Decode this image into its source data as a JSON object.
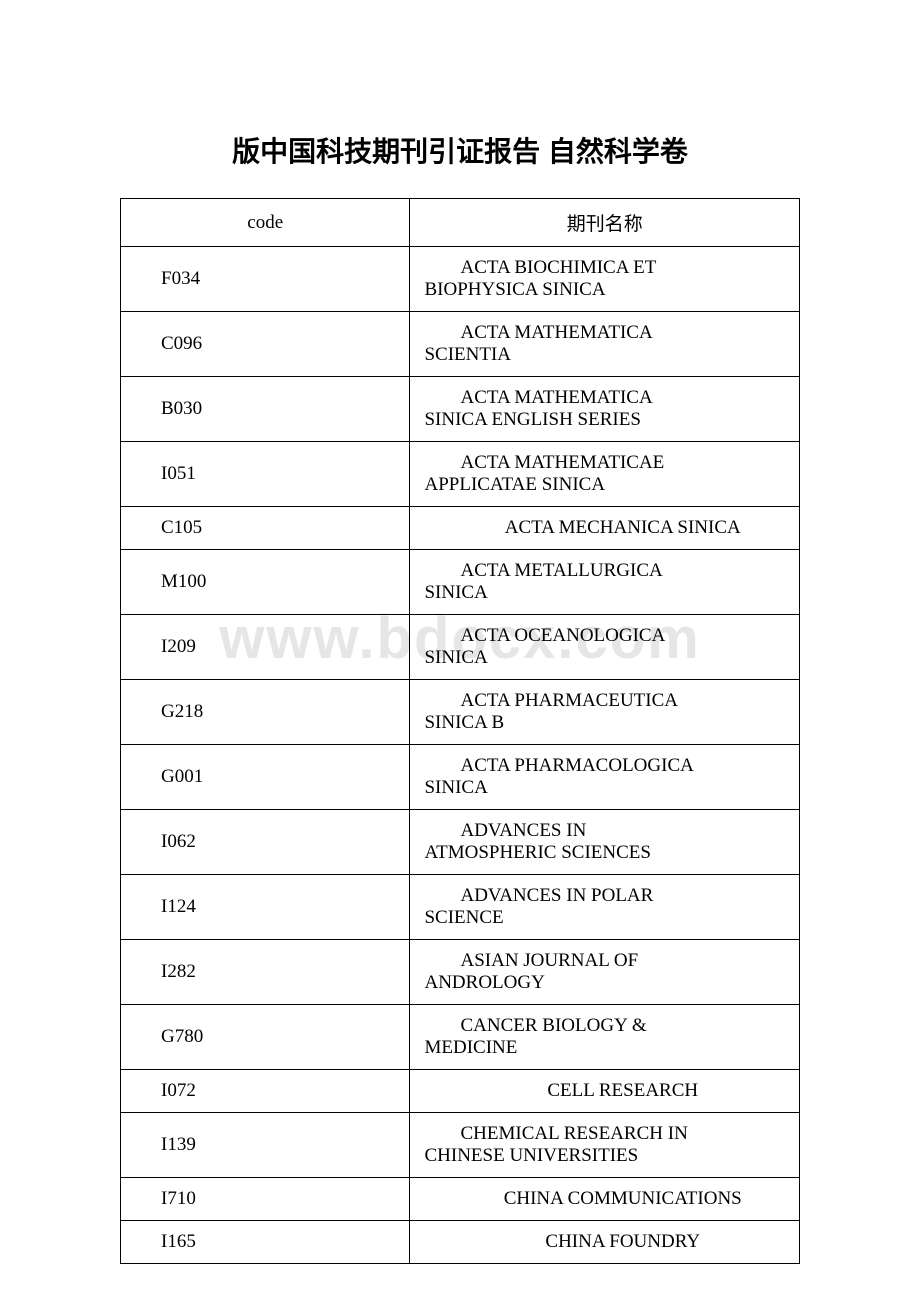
{
  "title": "版中国科技期刊引证报告 自然科学卷",
  "watermark": "www.bdocx.com",
  "headers": {
    "code": "code",
    "name": "期刊名称"
  },
  "rows": [
    {
      "code": "F034",
      "name_l1": "ACTA BIOCHIMICA ET",
      "name_l2": "BIOPHYSICA SINICA"
    },
    {
      "code": "C096",
      "name_l1": "ACTA MATHEMATICA",
      "name_l2": "SCIENTIA"
    },
    {
      "code": "B030",
      "name_l1": "ACTA MATHEMATICA",
      "name_l2": "SINICA ENGLISH SERIES"
    },
    {
      "code": "I051",
      "name_l1": "ACTA MATHEMATICAE",
      "name_l2": "APPLICATAE SINICA"
    },
    {
      "code": "C105",
      "name_l1": "ACTA MECHANICA SINICA",
      "name_l2": ""
    },
    {
      "code": "M100",
      "name_l1": "ACTA METALLURGICA",
      "name_l2": "SINICA"
    },
    {
      "code": "I209",
      "name_l1": "ACTA OCEANOLOGICA",
      "name_l2": "SINICA"
    },
    {
      "code": "G218",
      "name_l1": "ACTA PHARMACEUTICA",
      "name_l2": "SINICA B"
    },
    {
      "code": "G001",
      "name_l1": "ACTA PHARMACOLOGICA",
      "name_l2": "SINICA"
    },
    {
      "code": "I062",
      "name_l1": "ADVANCES IN",
      "name_l2": "ATMOSPHERIC SCIENCES"
    },
    {
      "code": "I124",
      "name_l1": "ADVANCES IN POLAR",
      "name_l2": "SCIENCE"
    },
    {
      "code": "I282",
      "name_l1": "ASIAN JOURNAL OF",
      "name_l2": "ANDROLOGY"
    },
    {
      "code": "G780",
      "name_l1": "CANCER BIOLOGY &",
      "name_l2": "MEDICINE"
    },
    {
      "code": "I072",
      "name_l1": "CELL RESEARCH",
      "name_l2": ""
    },
    {
      "code": "I139",
      "name_l1": "CHEMICAL RESEARCH IN",
      "name_l2": "CHINESE UNIVERSITIES"
    },
    {
      "code": "I710",
      "name_l1": "CHINA COMMUNICATIONS",
      "name_l2": ""
    },
    {
      "code": "I165",
      "name_l1": "CHINA FOUNDRY",
      "name_l2": ""
    }
  ]
}
